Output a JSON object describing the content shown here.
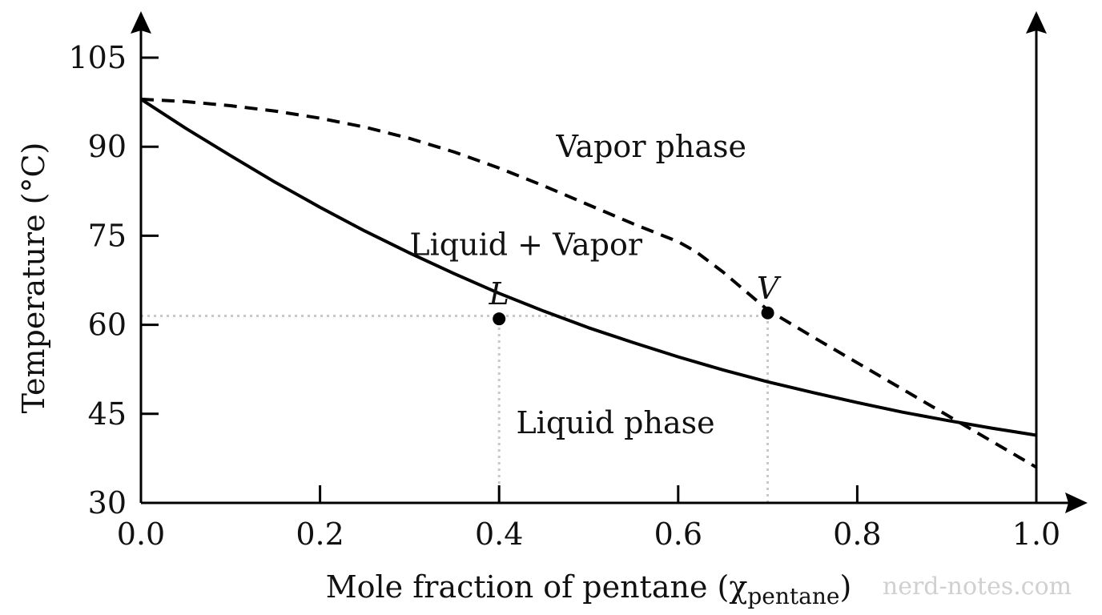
{
  "chart_data": {
    "type": "line",
    "xlabel": "Mole fraction of pentane (χ",
    "xlabel_subscript": "pentane",
    "xlabel_suffix": ")",
    "ylabel": "Temperature (°C)",
    "xlim": [
      0.0,
      1.0
    ],
    "ylim": [
      30,
      105
    ],
    "x_ticks": [
      0.0,
      0.2,
      0.4,
      0.6,
      0.8,
      1.0
    ],
    "x_tick_labels": [
      "0.0",
      "0.2",
      "0.4",
      "0.6",
      "0.8",
      "1.0"
    ],
    "y_ticks": [
      30,
      45,
      60,
      75,
      90,
      105
    ],
    "y_tick_labels": [
      "30",
      "45",
      "60",
      "75",
      "90",
      "105"
    ],
    "grid": false,
    "series": [
      {
        "style": "solid",
        "color": "#000000",
        "x": [
          0.0,
          0.05,
          0.1,
          0.15,
          0.2,
          0.25,
          0.3,
          0.35,
          0.4,
          0.45,
          0.5,
          0.55,
          0.6,
          0.65,
          0.7,
          0.75,
          0.8,
          0.85,
          0.9,
          0.95,
          1.0
        ],
        "y": [
          98,
          93.1,
          88.5,
          84.0,
          79.8,
          75.8,
          72.1,
          68.6,
          65.3,
          62.3,
          59.5,
          57.0,
          54.6,
          52.4,
          50.4,
          48.6,
          46.9,
          45.3,
          43.9,
          42.6,
          41.4
        ]
      },
      {
        "style": "dashed",
        "color": "#000000",
        "x": [
          0.0,
          0.05,
          0.1,
          0.15,
          0.2,
          0.25,
          0.3,
          0.35,
          0.4,
          0.45,
          0.5,
          0.55,
          0.6,
          0.62,
          0.65,
          0.7,
          0.75,
          0.8,
          0.85,
          0.9,
          0.95,
          1.0
        ],
        "y": [
          98,
          97.6,
          96.9,
          96.0,
          94.8,
          93.3,
          91.4,
          89.1,
          86.4,
          83.4,
          80.2,
          77.0,
          74.0,
          72.3,
          68.9,
          62.5,
          58.0,
          53.6,
          49.2,
          44.8,
          40.4,
          36
        ]
      }
    ],
    "points": [
      {
        "label": "L",
        "x": 0.4,
        "y": 61
      },
      {
        "label": "V",
        "x": 0.7,
        "y": 62
      }
    ],
    "reference_lines": [
      {
        "orientation": "horizontal",
        "y": 61.5,
        "x_from": 0.0,
        "x_to": 0.7,
        "style": "dotted",
        "color": "#c8c8c8"
      },
      {
        "orientation": "vertical",
        "x": 0.4,
        "y_from": 30,
        "y_to": 61,
        "style": "dotted",
        "color": "#c8c8c8"
      },
      {
        "orientation": "vertical",
        "x": 0.7,
        "y_from": 30,
        "y_to": 62,
        "style": "dotted",
        "color": "#c8c8c8"
      }
    ],
    "annotations": [
      {
        "text": "Vapor phase",
        "x": 0.57,
        "y": 90
      },
      {
        "text": "Liquid + Vapor",
        "x": 0.43,
        "y": 73.5
      },
      {
        "text": "Liquid phase",
        "x": 0.53,
        "y": 43.5
      }
    ]
  },
  "watermark": "nerd-notes.com"
}
